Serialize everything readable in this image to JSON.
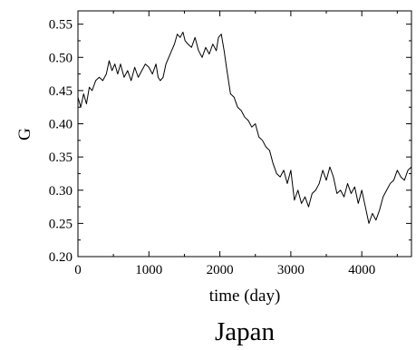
{
  "chart_data": {
    "type": "line",
    "title": "Japan",
    "xlabel": "time (day)",
    "ylabel": "G",
    "xlim": [
      0,
      4700
    ],
    "ylim": [
      0.2,
      0.57
    ],
    "xticks": [
      0,
      1000,
      2000,
      3000,
      4000
    ],
    "xtick_labels": [
      "0",
      "1000",
      "2000",
      "3000",
      "4000"
    ],
    "yticks": [
      0.2,
      0.25,
      0.3,
      0.35,
      0.4,
      0.45,
      0.5,
      0.55
    ],
    "ytick_labels": [
      "0.20",
      "0.25",
      "0.30",
      "0.35",
      "0.40",
      "0.45",
      "0.50",
      "0.55"
    ],
    "grid": false,
    "line_color": "#000000",
    "series": [
      {
        "x": [
          0,
          40,
          80,
          120,
          160,
          200,
          250,
          300,
          350,
          400,
          440,
          480,
          520,
          560,
          600,
          650,
          700,
          750,
          800,
          850,
          900,
          950,
          1000,
          1050,
          1100,
          1130,
          1160,
          1200,
          1240,
          1280,
          1320,
          1360,
          1400,
          1440,
          1480,
          1510,
          1550,
          1600,
          1650,
          1700,
          1750,
          1800,
          1850,
          1900,
          1950,
          1980,
          2020,
          2060,
          2100,
          2150,
          2200,
          2250,
          2300,
          2350,
          2400,
          2450,
          2500,
          2550,
          2600,
          2650,
          2700,
          2750,
          2800,
          2850,
          2900,
          2950,
          3000,
          3050,
          3100,
          3150,
          3200,
          3250,
          3300,
          3350,
          3400,
          3450,
          3500,
          3550,
          3600,
          3650,
          3700,
          3750,
          3800,
          3850,
          3900,
          3950,
          4000,
          4050,
          4100,
          4150,
          4200,
          4250,
          4300,
          4350,
          4400,
          4450,
          4500,
          4550,
          4600,
          4650,
          4700
        ],
        "y": [
          0.44,
          0.425,
          0.445,
          0.43,
          0.455,
          0.45,
          0.465,
          0.47,
          0.465,
          0.475,
          0.495,
          0.48,
          0.49,
          0.475,
          0.49,
          0.47,
          0.48,
          0.465,
          0.485,
          0.47,
          0.48,
          0.49,
          0.485,
          0.475,
          0.49,
          0.47,
          0.465,
          0.47,
          0.49,
          0.5,
          0.51,
          0.52,
          0.535,
          0.53,
          0.538,
          0.525,
          0.52,
          0.515,
          0.53,
          0.51,
          0.5,
          0.515,
          0.505,
          0.52,
          0.51,
          0.53,
          0.535,
          0.51,
          0.48,
          0.445,
          0.44,
          0.425,
          0.42,
          0.41,
          0.405,
          0.395,
          0.4,
          0.38,
          0.375,
          0.365,
          0.36,
          0.34,
          0.325,
          0.32,
          0.33,
          0.31,
          0.33,
          0.285,
          0.3,
          0.28,
          0.29,
          0.275,
          0.295,
          0.3,
          0.31,
          0.33,
          0.315,
          0.335,
          0.32,
          0.295,
          0.3,
          0.29,
          0.31,
          0.295,
          0.305,
          0.28,
          0.3,
          0.275,
          0.25,
          0.265,
          0.255,
          0.27,
          0.29,
          0.3,
          0.31,
          0.315,
          0.33,
          0.32,
          0.315,
          0.33,
          0.335
        ]
      }
    ]
  }
}
